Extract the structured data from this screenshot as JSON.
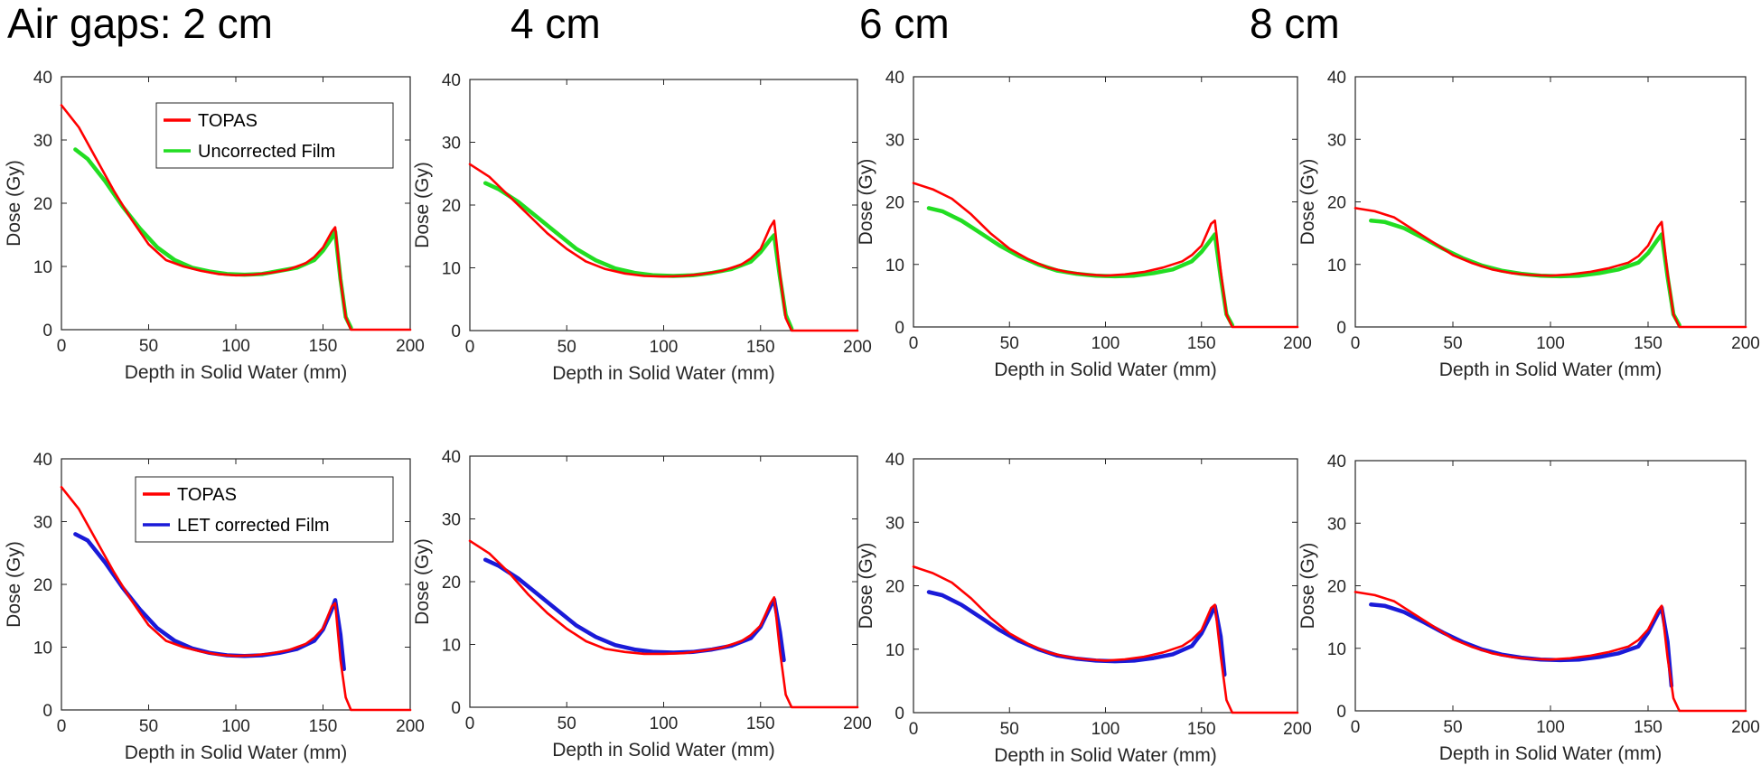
{
  "column_titles": [
    "Air gaps: 2 cm",
    "4 cm",
    "6 cm",
    "8 cm"
  ],
  "colors": {
    "topas": "#ff0000",
    "uncorrected": "#22dd22",
    "corrected": "#1a1ad8"
  },
  "chart_data": [
    {
      "type": "line",
      "row": "uncorrected",
      "air_gap_cm": 2,
      "xlabel": "Depth in Solid Water (mm)",
      "ylabel": "Dose (Gy)",
      "xlim": [
        0,
        200
      ],
      "ylim": [
        0,
        40
      ],
      "xticks": [
        "0",
        "50",
        "100",
        "150",
        "200"
      ],
      "yticks": [
        "0",
        "10",
        "20",
        "30",
        "40"
      ],
      "legend": [
        "TOPAS",
        "Uncorrected Film"
      ],
      "series": [
        {
          "name": "TOPAS",
          "x": [
            0,
            10,
            20,
            30,
            40,
            50,
            60,
            70,
            80,
            90,
            100,
            110,
            120,
            130,
            140,
            145,
            150,
            155,
            157,
            160,
            163,
            166,
            200
          ],
          "y": [
            35.5,
            32,
            27,
            22,
            17.5,
            13.5,
            11,
            10,
            9.3,
            8.8,
            8.6,
            8.7,
            9,
            9.5,
            10.5,
            11.5,
            13,
            15.5,
            16.2,
            8,
            2,
            0,
            0
          ]
        },
        {
          "name": "Uncorrected Film",
          "x": [
            8,
            15,
            25,
            35,
            45,
            55,
            65,
            75,
            85,
            95,
            105,
            115,
            125,
            135,
            145,
            150,
            155,
            157,
            160,
            163,
            166
          ],
          "y": [
            28.5,
            27,
            23.5,
            19.5,
            16,
            13,
            11,
            9.8,
            9.2,
            8.8,
            8.7,
            8.8,
            9.3,
            9.8,
            11,
            12.5,
            14.5,
            15.5,
            8,
            2,
            0.3
          ]
        }
      ]
    },
    {
      "type": "line",
      "row": "uncorrected",
      "air_gap_cm": 4,
      "xlabel": "Depth in Solid Water (mm)",
      "ylabel": "Dose (Gy)",
      "xlim": [
        0,
        200
      ],
      "ylim": [
        0,
        40
      ],
      "xticks": [
        "0",
        "50",
        "100",
        "150",
        "200"
      ],
      "yticks": [
        "0",
        "10",
        "20",
        "30",
        "40"
      ],
      "series": [
        {
          "name": "TOPAS",
          "x": [
            0,
            10,
            20,
            30,
            40,
            50,
            60,
            70,
            80,
            90,
            100,
            110,
            120,
            130,
            140,
            145,
            150,
            155,
            157,
            160,
            163,
            166,
            200
          ],
          "y": [
            26.5,
            24.5,
            21.5,
            18.5,
            15.5,
            13,
            11,
            9.8,
            9.1,
            8.7,
            8.6,
            8.7,
            9,
            9.5,
            10.5,
            11.5,
            13,
            16.5,
            17.5,
            9,
            2,
            0,
            0
          ]
        },
        {
          "name": "Uncorrected Film",
          "x": [
            8,
            15,
            25,
            35,
            45,
            55,
            65,
            75,
            85,
            95,
            105,
            115,
            125,
            135,
            145,
            150,
            155,
            157,
            160,
            163,
            166
          ],
          "y": [
            23.5,
            22.5,
            20.5,
            18,
            15.5,
            13,
            11.2,
            9.9,
            9.2,
            8.8,
            8.7,
            8.8,
            9.2,
            9.8,
            11,
            12.5,
            14.5,
            15.2,
            8.5,
            2.5,
            0.3
          ]
        }
      ]
    },
    {
      "type": "line",
      "row": "uncorrected",
      "air_gap_cm": 6,
      "xlabel": "Depth in Solid Water (mm)",
      "ylabel": "Dose (Gy)",
      "xlim": [
        0,
        200
      ],
      "ylim": [
        0,
        40
      ],
      "xticks": [
        "0",
        "50",
        "100",
        "150",
        "200"
      ],
      "yticks": [
        "0",
        "10",
        "20",
        "30",
        "40"
      ],
      "series": [
        {
          "name": "TOPAS",
          "x": [
            0,
            10,
            20,
            30,
            40,
            50,
            60,
            70,
            80,
            90,
            100,
            110,
            120,
            130,
            140,
            145,
            150,
            155,
            157,
            160,
            163,
            166,
            200
          ],
          "y": [
            23,
            22,
            20.5,
            18,
            15,
            12.5,
            10.8,
            9.5,
            8.8,
            8.4,
            8.2,
            8.4,
            8.8,
            9.5,
            10.5,
            11.5,
            13,
            16.5,
            17,
            9,
            2,
            0,
            0
          ]
        },
        {
          "name": "Uncorrected Film",
          "x": [
            8,
            15,
            25,
            35,
            45,
            55,
            65,
            75,
            85,
            95,
            105,
            115,
            125,
            135,
            145,
            150,
            155,
            157,
            160,
            163,
            166
          ],
          "y": [
            19,
            18.5,
            17,
            15,
            13,
            11.3,
            10,
            9,
            8.5,
            8.2,
            8.1,
            8.2,
            8.6,
            9.2,
            10.5,
            12,
            14,
            14.8,
            8,
            2,
            0.3
          ]
        }
      ]
    },
    {
      "type": "line",
      "row": "uncorrected",
      "air_gap_cm": 8,
      "xlabel": "Depth in Solid Water (mm)",
      "ylabel": "Dose (Gy)",
      "xlim": [
        0,
        200
      ],
      "ylim": [
        0,
        40
      ],
      "xticks": [
        "0",
        "50",
        "100",
        "150",
        "200"
      ],
      "yticks": [
        "0",
        "10",
        "20",
        "30",
        "40"
      ],
      "series": [
        {
          "name": "TOPAS",
          "x": [
            0,
            10,
            20,
            30,
            40,
            50,
            60,
            70,
            80,
            90,
            100,
            110,
            120,
            130,
            140,
            145,
            150,
            155,
            157,
            160,
            163,
            166,
            200
          ],
          "y": [
            19,
            18.5,
            17.5,
            15.5,
            13.5,
            11.5,
            10.2,
            9.2,
            8.6,
            8.3,
            8.2,
            8.4,
            8.8,
            9.4,
            10.3,
            11.3,
            13,
            16,
            16.8,
            8.5,
            2,
            0,
            0
          ]
        },
        {
          "name": "Uncorrected Film",
          "x": [
            8,
            15,
            25,
            35,
            45,
            55,
            65,
            75,
            85,
            95,
            105,
            115,
            125,
            135,
            145,
            150,
            155,
            157,
            160,
            163,
            166
          ],
          "y": [
            17,
            16.8,
            15.8,
            14.2,
            12.5,
            11,
            9.8,
            9,
            8.5,
            8.2,
            8.1,
            8.2,
            8.6,
            9.2,
            10.3,
            11.8,
            14,
            14.8,
            8,
            2,
            0.3
          ]
        }
      ]
    },
    {
      "type": "line",
      "row": "corrected",
      "air_gap_cm": 2,
      "xlabel": "Depth in Solid Water (mm)",
      "ylabel": "Dose (Gy)",
      "xlim": [
        0,
        200
      ],
      "ylim": [
        0,
        40
      ],
      "xticks": [
        "0",
        "50",
        "100",
        "150",
        "200"
      ],
      "yticks": [
        "0",
        "10",
        "20",
        "30",
        "40"
      ],
      "legend": [
        "TOPAS",
        "LET corrected Film"
      ],
      "series": [
        {
          "name": "TOPAS",
          "x": [
            0,
            10,
            20,
            30,
            40,
            50,
            60,
            70,
            80,
            90,
            100,
            110,
            120,
            130,
            140,
            145,
            150,
            155,
            157,
            160,
            163,
            166,
            200
          ],
          "y": [
            35.5,
            32,
            27,
            22,
            17.5,
            13.5,
            11,
            10,
            9.3,
            8.8,
            8.6,
            8.7,
            9,
            9.5,
            10.5,
            11.5,
            13,
            16.5,
            17,
            8,
            2,
            0,
            0
          ]
        },
        {
          "name": "LET corrected Film",
          "x": [
            8,
            15,
            25,
            35,
            45,
            55,
            65,
            75,
            85,
            95,
            105,
            115,
            125,
            135,
            145,
            150,
            155,
            157,
            160,
            162
          ],
          "y": [
            28,
            27,
            23.5,
            19.5,
            16,
            13,
            11,
            9.8,
            9.1,
            8.7,
            8.6,
            8.7,
            9.1,
            9.7,
            11,
            12.8,
            16,
            17.5,
            12,
            6.5
          ]
        }
      ]
    },
    {
      "type": "line",
      "row": "corrected",
      "air_gap_cm": 4,
      "xlabel": "Depth in Solid Water (mm)",
      "ylabel": "Dose (Gy)",
      "xlim": [
        0,
        200
      ],
      "ylim": [
        0,
        40
      ],
      "xticks": [
        "0",
        "50",
        "100",
        "150",
        "200"
      ],
      "yticks": [
        "0",
        "10",
        "20",
        "30",
        "40"
      ],
      "series": [
        {
          "name": "TOPAS",
          "x": [
            0,
            10,
            20,
            30,
            40,
            50,
            60,
            70,
            80,
            90,
            100,
            110,
            120,
            130,
            140,
            145,
            150,
            155,
            157,
            160,
            163,
            166,
            200
          ],
          "y": [
            26.5,
            24.5,
            21.5,
            18,
            15,
            12.5,
            10.5,
            9.3,
            8.8,
            8.5,
            8.5,
            8.6,
            9,
            9.5,
            10.5,
            11.5,
            13,
            16.5,
            17.5,
            9,
            2,
            0,
            0
          ]
        },
        {
          "name": "LET corrected Film",
          "x": [
            8,
            15,
            25,
            35,
            45,
            55,
            65,
            75,
            85,
            95,
            105,
            115,
            125,
            135,
            145,
            150,
            155,
            157,
            160,
            162
          ],
          "y": [
            23.5,
            22.5,
            20.5,
            18,
            15.5,
            13,
            11.2,
            9.9,
            9.2,
            8.8,
            8.7,
            8.8,
            9.2,
            9.8,
            11,
            12.8,
            16,
            17.2,
            12,
            7.5
          ]
        }
      ]
    },
    {
      "type": "line",
      "row": "corrected",
      "air_gap_cm": 6,
      "xlabel": "Depth in Solid Water (mm)",
      "ylabel": "Dose (Gy)",
      "xlim": [
        0,
        200
      ],
      "ylim": [
        0,
        40
      ],
      "xticks": [
        "0",
        "50",
        "100",
        "150",
        "200"
      ],
      "yticks": [
        "0",
        "10",
        "20",
        "30",
        "40"
      ],
      "series": [
        {
          "name": "TOPAS",
          "x": [
            0,
            10,
            20,
            30,
            40,
            50,
            60,
            70,
            80,
            90,
            100,
            110,
            120,
            130,
            140,
            145,
            150,
            155,
            157,
            160,
            163,
            166,
            200
          ],
          "y": [
            23,
            22,
            20.5,
            18,
            15,
            12.5,
            10.8,
            9.5,
            8.8,
            8.4,
            8.2,
            8.4,
            8.8,
            9.5,
            10.5,
            11.5,
            13,
            16.5,
            17,
            9,
            2,
            0,
            0
          ]
        },
        {
          "name": "LET corrected Film",
          "x": [
            8,
            15,
            25,
            35,
            45,
            55,
            65,
            75,
            85,
            95,
            105,
            115,
            125,
            135,
            145,
            150,
            155,
            157,
            160,
            162
          ],
          "y": [
            19,
            18.5,
            17,
            15,
            13,
            11.3,
            10,
            9,
            8.5,
            8.2,
            8.1,
            8.2,
            8.6,
            9.2,
            10.5,
            12.5,
            15.5,
            16.8,
            12,
            6
          ]
        }
      ]
    },
    {
      "type": "line",
      "row": "corrected",
      "air_gap_cm": 8,
      "xlabel": "Depth in Solid Water (mm)",
      "ylabel": "Dose (Gy)",
      "xlim": [
        0,
        200
      ],
      "ylim": [
        0,
        40
      ],
      "xticks": [
        "0",
        "50",
        "100",
        "150",
        "200"
      ],
      "yticks": [
        "0",
        "10",
        "20",
        "30",
        "40"
      ],
      "series": [
        {
          "name": "TOPAS",
          "x": [
            0,
            10,
            20,
            30,
            40,
            50,
            60,
            70,
            80,
            90,
            100,
            110,
            120,
            130,
            140,
            145,
            150,
            155,
            157,
            160,
            163,
            166,
            200
          ],
          "y": [
            19,
            18.5,
            17.5,
            15.5,
            13.5,
            11.5,
            10.2,
            9.2,
            8.6,
            8.3,
            8.2,
            8.4,
            8.8,
            9.4,
            10.3,
            11.3,
            13,
            16,
            16.8,
            8.5,
            2,
            0,
            0
          ]
        },
        {
          "name": "LET corrected Film",
          "x": [
            8,
            15,
            25,
            35,
            45,
            55,
            65,
            75,
            85,
            95,
            105,
            115,
            125,
            135,
            145,
            150,
            155,
            157,
            160,
            162
          ],
          "y": [
            17,
            16.8,
            15.8,
            14.2,
            12.5,
            11,
            9.8,
            9,
            8.5,
            8.2,
            8.1,
            8.2,
            8.6,
            9.2,
            10.3,
            12.5,
            15.5,
            16.5,
            11,
            4
          ]
        }
      ]
    }
  ]
}
